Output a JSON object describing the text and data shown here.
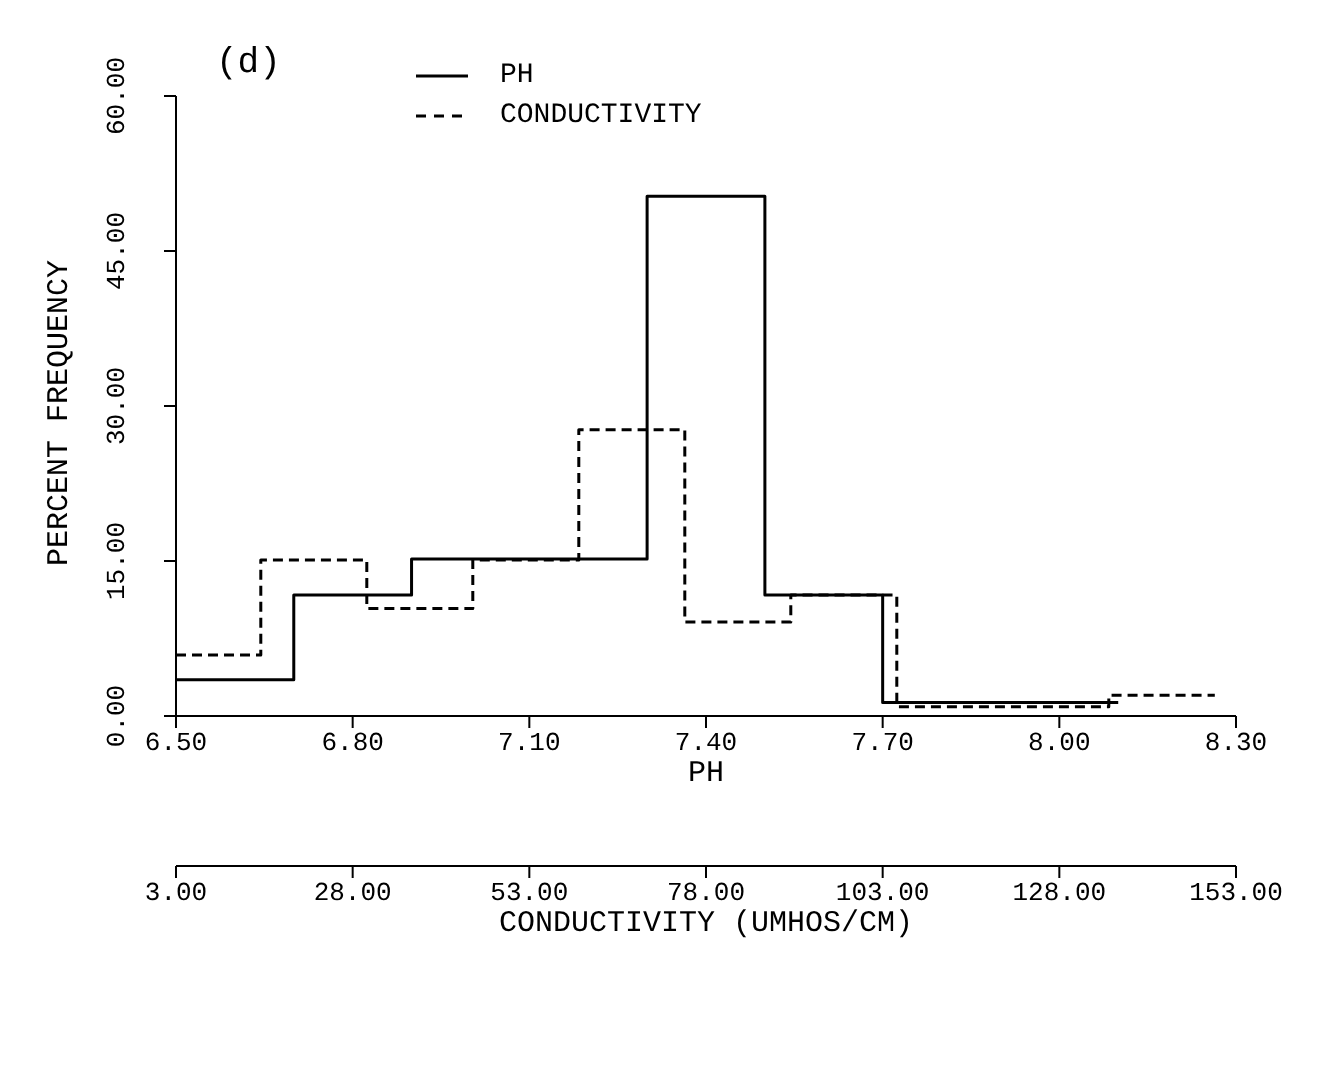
{
  "chart_data": {
    "type": "step",
    "title": "(d)",
    "xlabel": "PH",
    "x2label": "CONDUCTIVITY (UMHOS/CM)",
    "ylabel": "PERCENT FREQUENCY",
    "series": [
      {
        "name": "PH",
        "color": "#000000",
        "line_style": "solid",
        "x": [
          6.5,
          6.7,
          6.9,
          7.1,
          7.3,
          7.5,
          7.7,
          7.9,
          8.1
        ],
        "values": [
          3.5,
          11.7,
          15.2,
          15.2,
          50.3,
          11.7,
          1.3,
          1.3,
          1.3
        ]
      },
      {
        "name": "CONDUCTIVITY",
        "color": "#000000",
        "line_style": "dashed",
        "axis": "x2",
        "x": [
          3,
          15,
          30,
          45,
          60,
          75,
          90,
          105,
          120,
          135,
          150
        ],
        "values": [
          5.9,
          15.1,
          10.4,
          15.1,
          27.7,
          9.1,
          11.7,
          0.9,
          0.9,
          2.0,
          2.0
        ]
      }
    ],
    "xlim": [
      6.5,
      8.3
    ],
    "xticks": [
      {
        "value": 6.5,
        "label": "6.50"
      },
      {
        "value": 6.8,
        "label": "6.80"
      },
      {
        "value": 7.1,
        "label": "7.10"
      },
      {
        "value": 7.4,
        "label": "7.40"
      },
      {
        "value": 7.7,
        "label": "7.70"
      },
      {
        "value": 8.0,
        "label": "8.00"
      },
      {
        "value": 8.3,
        "label": "8.30"
      }
    ],
    "x2lim": [
      3,
      153
    ],
    "x2ticks": [
      {
        "value": 3,
        "label": "3.00"
      },
      {
        "value": 28,
        "label": "28.00"
      },
      {
        "value": 53,
        "label": "53.00"
      },
      {
        "value": 78,
        "label": "78.00"
      },
      {
        "value": 103,
        "label": "103.00"
      },
      {
        "value": 128,
        "label": "128.00"
      },
      {
        "value": 153,
        "label": "153.00"
      }
    ],
    "ylim": [
      0,
      60
    ],
    "yticks": [
      {
        "value": 0,
        "label": "0.00"
      },
      {
        "value": 15,
        "label": "15.00"
      },
      {
        "value": 30,
        "label": "30.00"
      },
      {
        "value": 45,
        "label": "45.00"
      },
      {
        "value": 60,
        "label": "60.00"
      }
    ],
    "grid": false,
    "legend": "top"
  }
}
